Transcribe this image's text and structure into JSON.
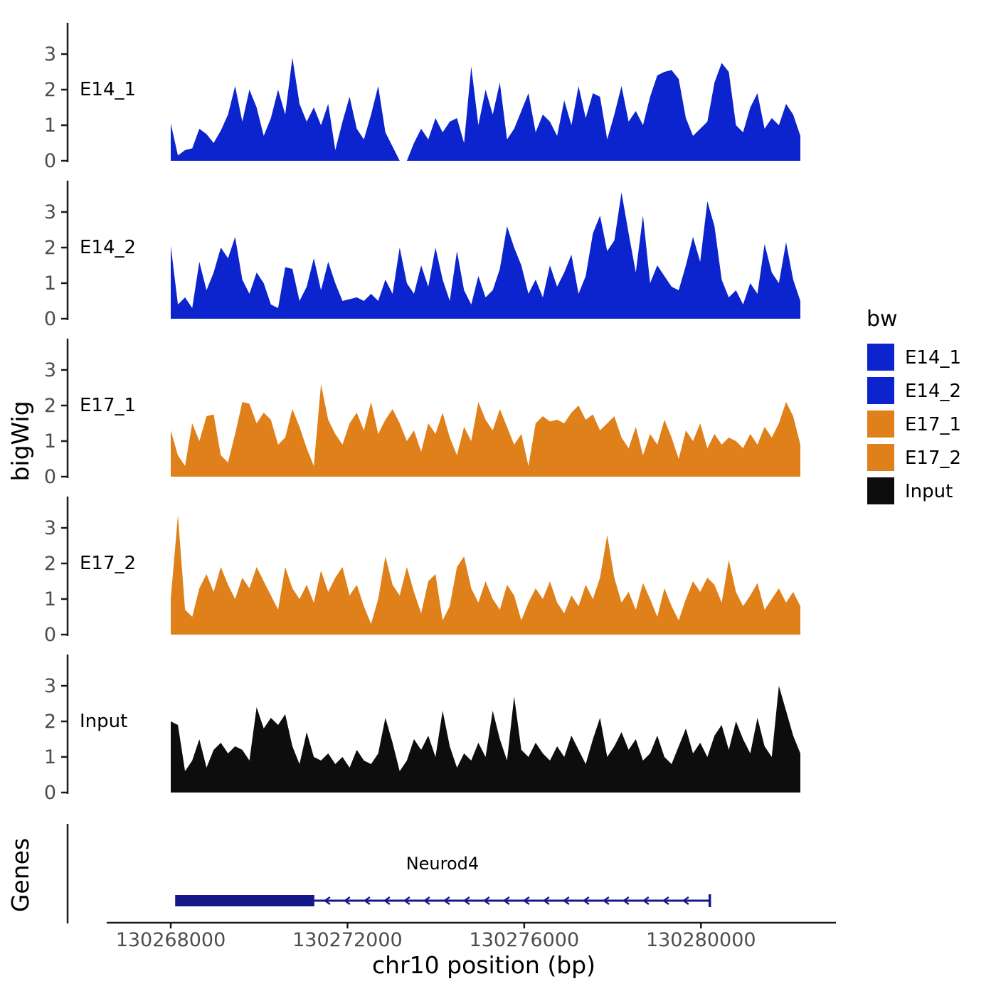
{
  "chart_data": {
    "type": "area",
    "title": "",
    "xlabel": "chr10 position (bp)",
    "ylabel": "bigWig",
    "genes_panel_label": "Genes",
    "x_range": [
      130268000,
      130282250
    ],
    "x_axis": {
      "ticks": [
        130268000,
        130272000,
        130276000,
        130280000
      ],
      "tick_labels": [
        "130268000",
        "130272000",
        "130276000",
        "130280000"
      ]
    },
    "y_axis": {
      "ticks": [
        0,
        1,
        2,
        3
      ],
      "tick_labels": [
        "0",
        "1",
        "2",
        "3"
      ],
      "ylim": [
        0,
        3.6
      ]
    },
    "grid": false,
    "legend": {
      "title": "bw",
      "position": "right",
      "items": [
        {
          "label": "E14_1",
          "color": "#0b24ce"
        },
        {
          "label": "E14_2",
          "color": "#0b24ce"
        },
        {
          "label": "E17_1",
          "color": "#e0801a"
        },
        {
          "label": "E17_2",
          "color": "#e0801a"
        },
        {
          "label": "Input",
          "color": "#0d0d0d"
        }
      ]
    },
    "tracks": [
      {
        "name": "E14_1",
        "color": "#0b24ce",
        "values": [
          1.05,
          0.15,
          0.3,
          0.35,
          0.9,
          0.75,
          0.5,
          0.85,
          1.3,
          2.1,
          1.1,
          2.0,
          1.5,
          0.7,
          1.2,
          2.0,
          1.3,
          2.9,
          1.6,
          1.1,
          1.5,
          1.0,
          1.6,
          0.3,
          1.1,
          1.8,
          0.9,
          0.6,
          1.3,
          2.1,
          0.8,
          0.4,
          0.0,
          0.0,
          0.5,
          0.9,
          0.6,
          1.2,
          0.8,
          1.1,
          1.2,
          0.5,
          2.65,
          1.0,
          2.0,
          1.3,
          2.2,
          0.6,
          0.9,
          1.4,
          1.9,
          0.8,
          1.3,
          1.1,
          0.7,
          1.7,
          1.0,
          2.1,
          1.2,
          1.9,
          1.8,
          0.6,
          1.3,
          2.1,
          1.1,
          1.4,
          1.0,
          1.8,
          2.4,
          2.5,
          2.55,
          2.3,
          1.2,
          0.7,
          0.9,
          1.1,
          2.2,
          2.75,
          2.5,
          1.0,
          0.8,
          1.5,
          1.9,
          0.9,
          1.2,
          1.0,
          1.6,
          1.3,
          0.7
        ]
      },
      {
        "name": "E14_2",
        "color": "#0b24ce",
        "values": [
          2.05,
          0.4,
          0.6,
          0.3,
          1.6,
          0.8,
          1.3,
          2.0,
          1.7,
          2.3,
          1.1,
          0.7,
          1.3,
          1.0,
          0.4,
          0.3,
          1.45,
          1.4,
          0.5,
          0.9,
          1.7,
          0.8,
          1.6,
          1.0,
          0.5,
          0.55,
          0.6,
          0.5,
          0.7,
          0.5,
          1.1,
          0.7,
          2.0,
          1.0,
          0.7,
          1.5,
          0.9,
          2.0,
          1.1,
          0.5,
          1.9,
          0.8,
          0.4,
          1.2,
          0.6,
          0.8,
          1.4,
          2.6,
          2.0,
          1.5,
          0.7,
          1.1,
          0.6,
          1.5,
          0.9,
          1.3,
          1.8,
          0.7,
          1.2,
          2.4,
          2.9,
          1.9,
          2.2,
          3.55,
          2.4,
          1.3,
          2.9,
          1.0,
          1.5,
          1.2,
          0.9,
          0.8,
          1.5,
          2.3,
          1.6,
          3.3,
          2.6,
          1.1,
          0.6,
          0.8,
          0.4,
          1.0,
          0.7,
          2.1,
          1.3,
          1.0,
          2.15,
          1.1,
          0.5
        ]
      },
      {
        "name": "E17_1",
        "color": "#e0801a",
        "values": [
          1.3,
          0.6,
          0.3,
          1.5,
          1.0,
          1.7,
          1.75,
          0.6,
          0.4,
          1.2,
          2.1,
          2.05,
          1.5,
          1.8,
          1.6,
          0.9,
          1.1,
          1.9,
          1.4,
          0.8,
          0.3,
          2.6,
          1.6,
          1.2,
          0.9,
          1.5,
          1.8,
          1.3,
          2.1,
          1.2,
          1.6,
          1.9,
          1.5,
          1.0,
          1.3,
          0.7,
          1.5,
          1.2,
          1.8,
          1.1,
          0.6,
          1.4,
          1.0,
          2.1,
          1.6,
          1.3,
          1.9,
          1.4,
          0.9,
          1.2,
          0.3,
          1.5,
          1.7,
          1.55,
          1.6,
          1.5,
          1.8,
          2.0,
          1.6,
          1.75,
          1.3,
          1.5,
          1.7,
          1.1,
          0.8,
          1.4,
          0.6,
          1.2,
          0.9,
          1.6,
          1.1,
          0.5,
          1.3,
          1.0,
          1.5,
          0.8,
          1.2,
          0.9,
          1.1,
          1.0,
          0.8,
          1.2,
          0.9,
          1.4,
          1.1,
          1.5,
          2.1,
          1.7,
          0.9
        ]
      },
      {
        "name": "E17_2",
        "color": "#e0801a",
        "values": [
          1.0,
          3.35,
          0.7,
          0.5,
          1.3,
          1.7,
          1.2,
          1.9,
          1.4,
          1.0,
          1.6,
          1.3,
          1.9,
          1.5,
          1.1,
          0.7,
          1.9,
          1.3,
          1.0,
          1.4,
          0.9,
          1.8,
          1.2,
          1.6,
          1.9,
          1.1,
          1.4,
          0.8,
          0.3,
          1.0,
          2.2,
          1.4,
          1.1,
          1.9,
          1.2,
          0.6,
          1.5,
          1.7,
          0.4,
          0.8,
          1.9,
          2.2,
          1.3,
          0.9,
          1.5,
          1.0,
          0.7,
          1.4,
          1.1,
          0.4,
          0.9,
          1.3,
          1.0,
          1.5,
          0.9,
          0.6,
          1.1,
          0.8,
          1.4,
          1.0,
          1.6,
          2.8,
          1.6,
          0.9,
          1.2,
          0.7,
          1.45,
          1.0,
          0.5,
          1.3,
          0.8,
          0.4,
          1.0,
          1.5,
          1.2,
          1.6,
          1.4,
          0.9,
          2.1,
          1.2,
          0.8,
          1.1,
          1.45,
          0.7,
          1.0,
          1.3,
          0.9,
          1.2,
          0.8
        ]
      },
      {
        "name": "Input",
        "color": "#0d0d0d",
        "values": [
          2.0,
          1.9,
          0.6,
          0.9,
          1.5,
          0.7,
          1.2,
          1.4,
          1.1,
          1.3,
          1.2,
          0.9,
          2.4,
          1.8,
          2.1,
          1.9,
          2.2,
          1.3,
          0.8,
          1.7,
          1.0,
          0.9,
          1.1,
          0.8,
          1.0,
          0.7,
          1.2,
          0.9,
          0.8,
          1.1,
          2.1,
          1.4,
          0.6,
          0.9,
          1.5,
          1.2,
          1.6,
          1.0,
          2.3,
          1.3,
          0.7,
          1.1,
          0.9,
          1.4,
          1.0,
          2.3,
          1.5,
          0.9,
          2.7,
          1.2,
          1.0,
          1.4,
          1.1,
          0.9,
          1.3,
          1.0,
          1.6,
          1.2,
          0.8,
          1.5,
          2.1,
          1.0,
          1.3,
          1.7,
          1.2,
          1.5,
          0.9,
          1.1,
          1.6,
          1.0,
          0.8,
          1.3,
          1.8,
          1.1,
          1.4,
          1.0,
          1.6,
          1.9,
          1.2,
          2.0,
          1.5,
          1.1,
          2.1,
          1.3,
          1.0,
          3.0,
          2.3,
          1.6,
          1.1
        ]
      }
    ],
    "gene": {
      "name": "Neurod4",
      "strand": "-",
      "color": "#17178c",
      "exon_start": 130268100,
      "exon_end": 130271250,
      "tx_start": 130268100,
      "tx_end": 130280200
    },
    "colors": {
      "axis": "#1a1a1a",
      "tick_text": "#4d4d4d",
      "label_text": "#000000"
    }
  }
}
